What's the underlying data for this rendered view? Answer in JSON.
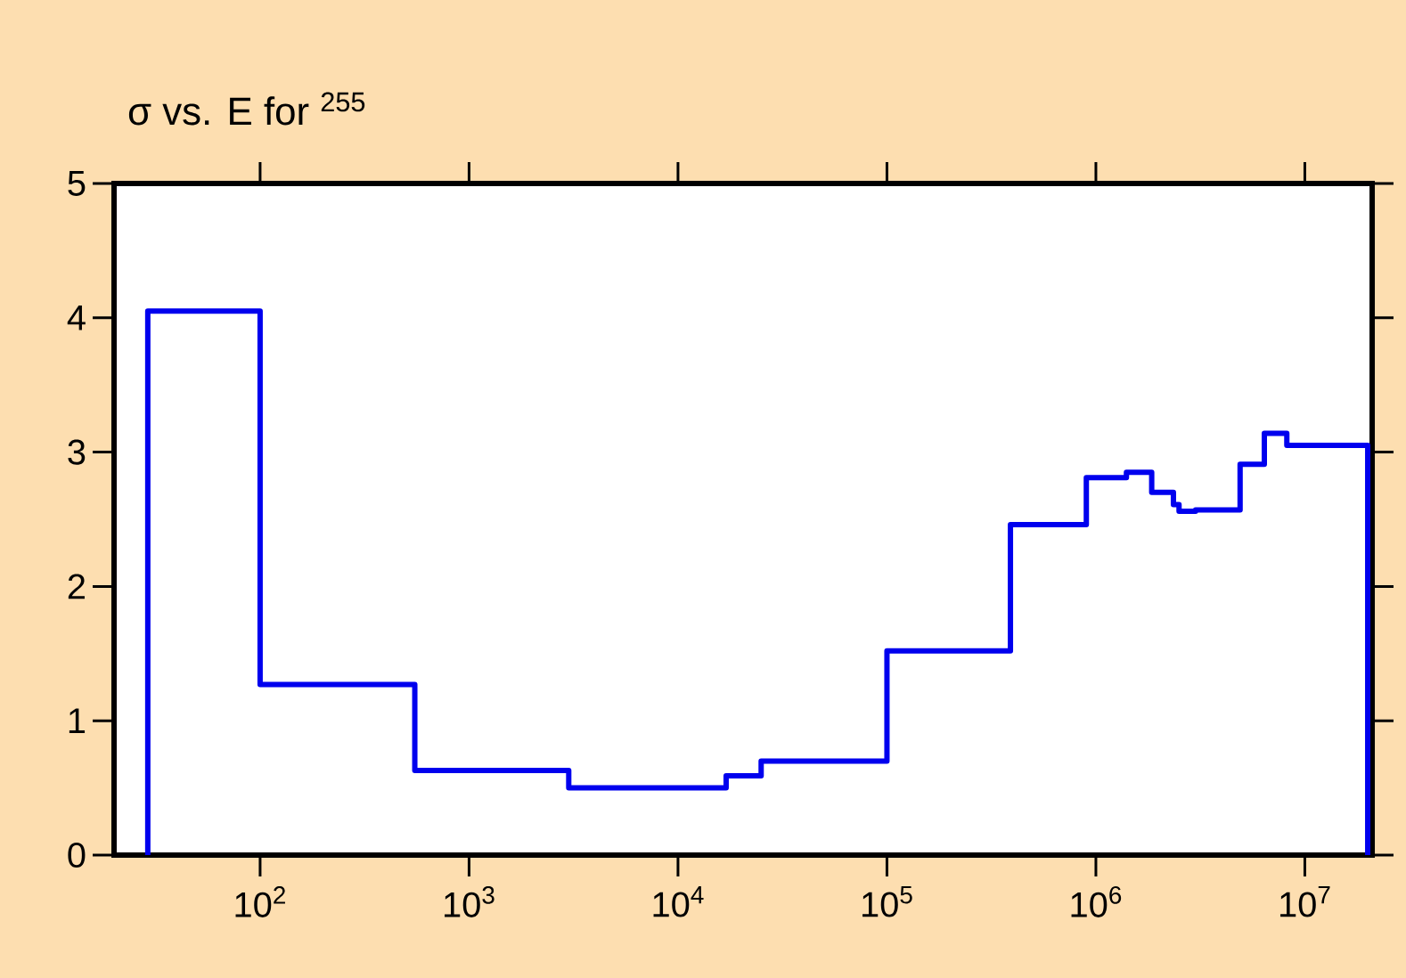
{
  "chart_data": {
    "type": "step",
    "title": "σ vs. E for $^{255}$",
    "log": "x",
    "xlim": [
      20,
      21000000
    ],
    "ylim": [
      0,
      5
    ],
    "xticks": [
      {
        "value": 100,
        "label": "10$^{2}$"
      },
      {
        "value": 1000,
        "label": "10$^{3}$"
      },
      {
        "value": 10000,
        "label": "10$^{4}$"
      },
      {
        "value": 100000,
        "label": "10$^{5}$"
      },
      {
        "value": 1000000,
        "label": "10$^{6}$"
      },
      {
        "value": 10000000,
        "label": "10$^{7}$"
      }
    ],
    "yticks": [
      0,
      1,
      2,
      3,
      4,
      5
    ],
    "series": [
      {
        "color": "#0000ee",
        "x": [
          29,
          29,
          100,
          550,
          3000,
          17000,
          25000,
          100000,
          390000,
          900000,
          1400000,
          1850000,
          2350000,
          2500000,
          3000000,
          4900000,
          6400000,
          8200000,
          20000000,
          20000000
        ],
        "values": [
          0,
          4.05,
          1.27,
          0.63,
          0.5,
          0.59,
          0.7,
          1.52,
          2.46,
          2.81,
          2.85,
          2.7,
          2.61,
          2.56,
          2.57,
          2.91,
          3.14,
          3.05,
          3.05,
          0
        ]
      }
    ]
  }
}
